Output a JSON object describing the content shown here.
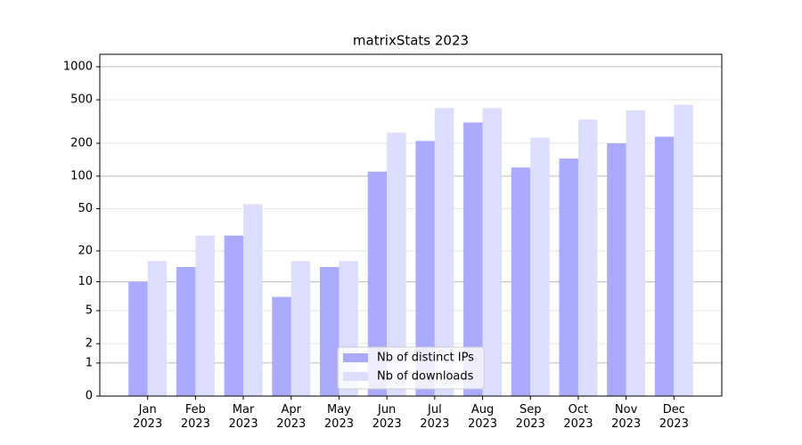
{
  "chart_data": {
    "type": "bar",
    "title": "matrixStats 2023",
    "categories": [
      "Jan\n2023",
      "Feb\n2023",
      "Mar\n2023",
      "Apr\n2023",
      "May\n2023",
      "Jun\n2023",
      "Jul\n2023",
      "Aug\n2023",
      "Sep\n2023",
      "Oct\n2023",
      "Nov\n2023",
      "Dec\n2023"
    ],
    "series": [
      {
        "name": "Nb of distinct IPs",
        "color": "#aaaaff",
        "values": [
          10,
          14,
          28,
          7,
          14,
          110,
          210,
          310,
          120,
          145,
          200,
          230
        ]
      },
      {
        "name": "Nb of downloads",
        "color": "#ddddff",
        "values": [
          16,
          28,
          55,
          16,
          16,
          250,
          420,
          420,
          225,
          330,
          400,
          450
        ]
      }
    ],
    "yscale": "log1p",
    "ylim": [
      0,
      1300
    ],
    "yticks": [
      0,
      1,
      2,
      5,
      10,
      20,
      50,
      100,
      200,
      500,
      1000
    ],
    "grid": true,
    "legend": "lower center"
  }
}
